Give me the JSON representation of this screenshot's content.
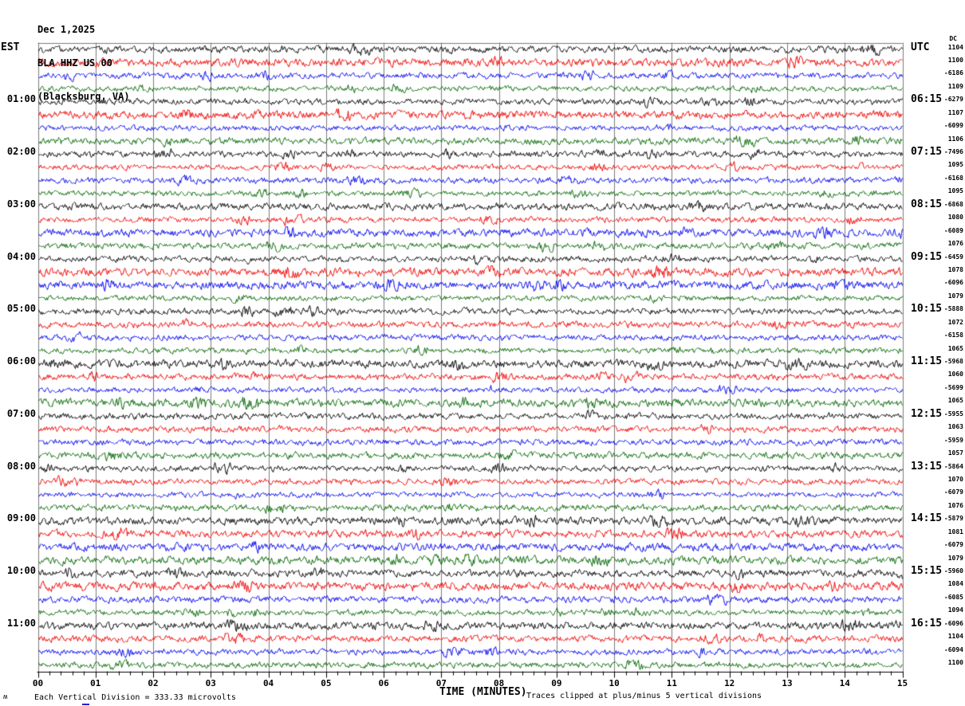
{
  "header": {
    "date": "Dec 1,2025",
    "station": "BLA HHZ US 00",
    "location": "(Blacksburg, VA)"
  },
  "axes": {
    "left_tz_label": "EST",
    "right_tz_label": "UTC",
    "dc_column_header": "DC",
    "left_hour_labels": [
      "01:00",
      "02:00",
      "03:00",
      "04:00",
      "05:00",
      "06:00",
      "07:00",
      "08:00",
      "09:00",
      "10:00",
      "11:00"
    ],
    "right_utc_labels": [
      "06:15",
      "07:15",
      "08:15",
      "09:15",
      "10:15",
      "11:15",
      "12:15",
      "13:15",
      "14:15",
      "15:15",
      "16:15"
    ],
    "bottom_minute_labels": [
      "00",
      "01",
      "02",
      "03",
      "04",
      "05",
      "06",
      "07",
      "08",
      "09",
      "10",
      "11",
      "12",
      "13",
      "14",
      "15"
    ],
    "bottom_axis_title": "TIME (MINUTES)"
  },
  "footer": {
    "glyph": "ʍ",
    "scale_note": "Each Vertical Division =  333.33 microvolts",
    "clip_note": "Traces clipped at plus/minus 5 vertical divisions"
  },
  "chart_data": {
    "type": "line",
    "subtype": "helicorder-seismogram",
    "title": "BLA HHZ US 00 (Blacksburg, VA) Dec 1,2025",
    "xlabel": "TIME (MINUTES)",
    "x_range_minutes": [
      0,
      15
    ],
    "major_tick_every_minutes": 1,
    "minor_ticks_per_minute": 5,
    "num_traces": 48,
    "traces_per_hour": 4,
    "minutes_per_trace": 15,
    "trace_color_cycle": [
      "#000000",
      "#ee0000",
      "#0000ee",
      "#006600"
    ],
    "grid_color": "#7b7b7b",
    "clip_divisions": 5,
    "microvolts_per_division": 333.33,
    "content": "continuous background seismic noise, no large events",
    "dc_values": [
      1104,
      1100,
      -6186,
      1109,
      -6279,
      1107,
      -6099,
      1106,
      -7496,
      1095,
      -6168,
      1095,
      -6868,
      1080,
      -6089,
      1076,
      -6459,
      1078,
      -6096,
      1079,
      -5888,
      1072,
      -6158,
      1065,
      -5968,
      1060,
      -5699,
      1065,
      -5955,
      1063,
      -5959,
      1057,
      -5864,
      1070,
      -6079,
      1076,
      -5879,
      1081,
      -6079,
      1079,
      -5960,
      1084,
      -6085,
      1094,
      -6096,
      1104,
      -6094,
      1100
    ]
  }
}
